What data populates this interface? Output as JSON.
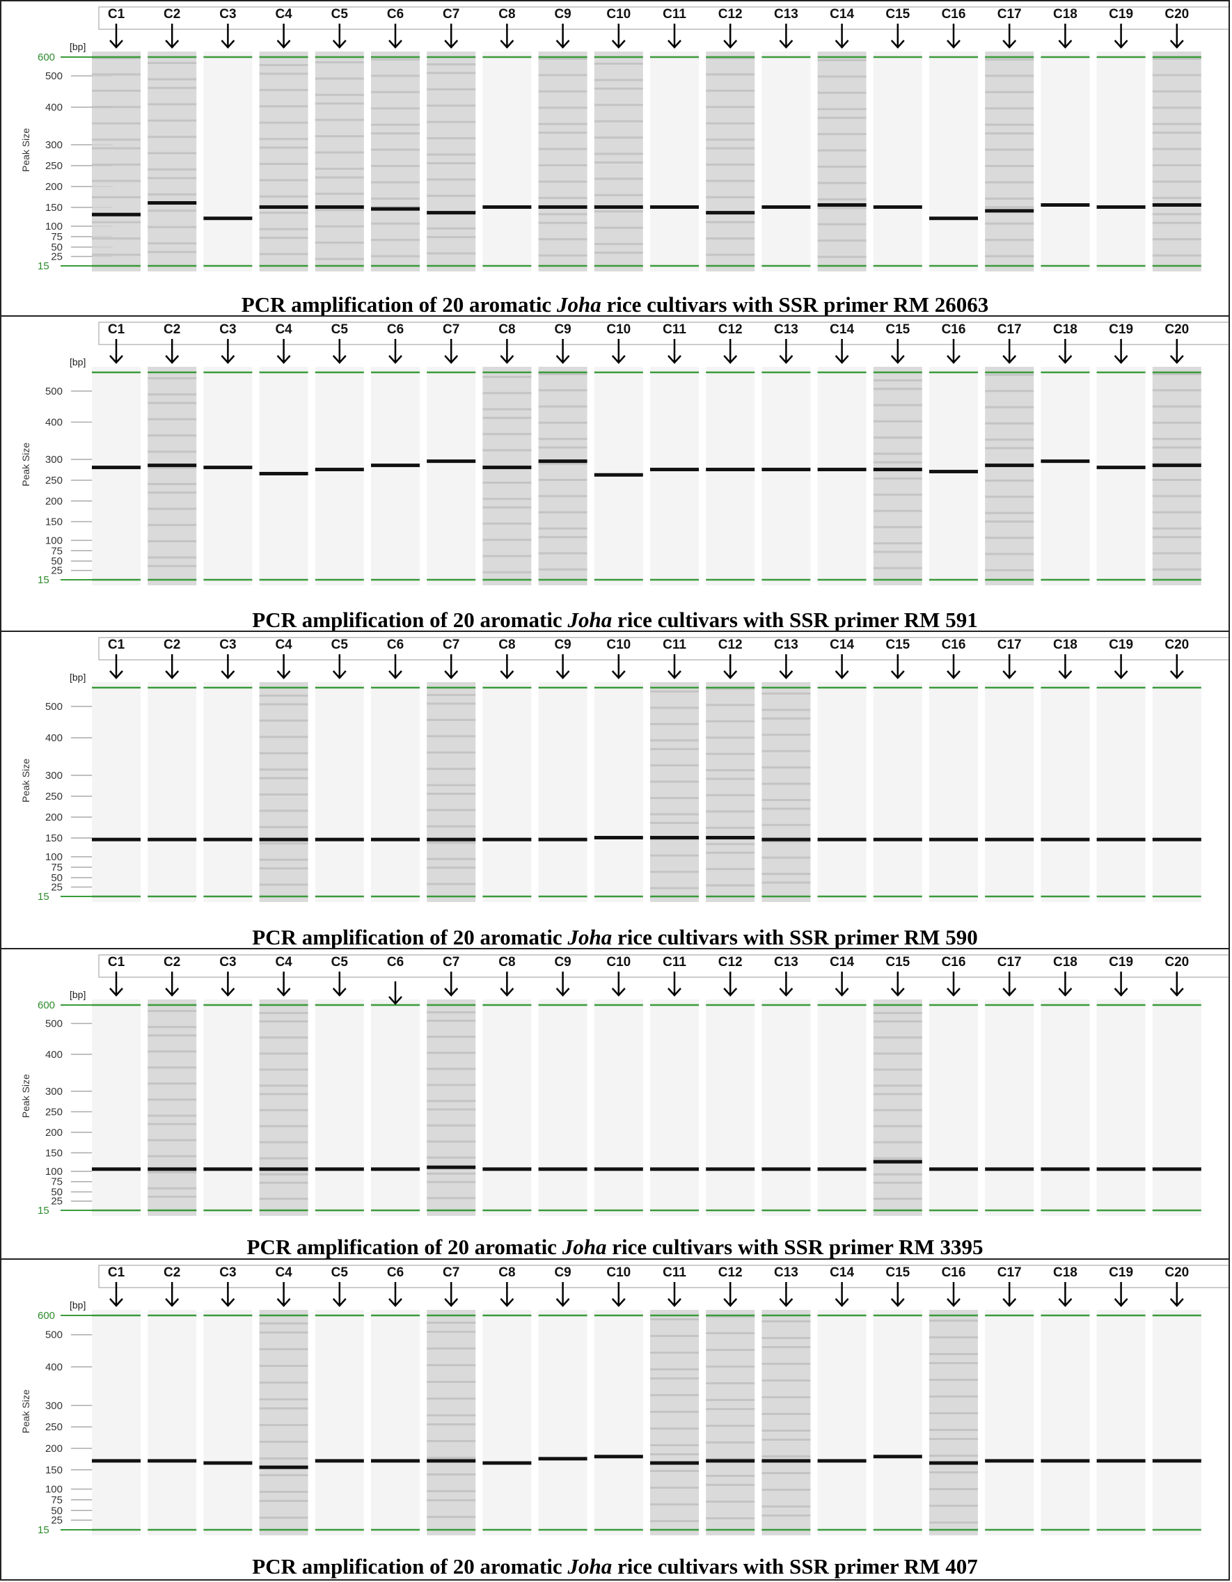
{
  "y_axis_label": "Peak Size",
  "unit_label": "[bp]",
  "lanes": [
    "C1",
    "C2",
    "C3",
    "C4",
    "C5",
    "C6",
    "C7",
    "C8",
    "C9",
    "C10",
    "C11",
    "C12",
    "C13",
    "C14",
    "C15",
    "C16",
    "C17",
    "C18",
    "C19",
    "C20"
  ],
  "colors": {
    "marker": "#3a9a3a",
    "band": "#111111",
    "smear": "#c8c8c8"
  },
  "panels": [
    {
      "caption_pre": "PCR amplification of 20 aromatic ",
      "caption_italic": "Joha",
      "caption_post": " rice cultivars with SSR primer RM 26063",
      "tick_labels": [
        "600",
        "500",
        "400",
        "300",
        "250",
        "200",
        "150",
        "100",
        "75",
        "50",
        "25",
        "15"
      ],
      "band_sizes_bp": [
        130,
        160,
        120,
        150,
        150,
        145,
        135,
        150,
        150,
        150,
        150,
        135,
        150,
        155,
        150,
        120,
        140,
        155,
        150,
        155
      ],
      "smear_lanes": [
        "C1",
        "C2",
        "C4",
        "C5",
        "C6",
        "C7",
        "C9",
        "C10",
        "C12",
        "C14",
        "C17",
        "C20"
      ],
      "c6_arrow_low": false
    },
    {
      "caption_pre": "PCR amplification of 20 aromatic ",
      "caption_italic": "Joha",
      "caption_post": " rice cultivars with SSR primer RM 591",
      "tick_labels": [
        "500",
        "400",
        "300",
        "250",
        "200",
        "150",
        "100",
        "75",
        "50",
        "25",
        "15"
      ],
      "band_sizes_bp": [
        280,
        285,
        280,
        265,
        275,
        285,
        295,
        280,
        295,
        262,
        275,
        275,
        275,
        275,
        275,
        270,
        285,
        295,
        280,
        285
      ],
      "smear_lanes": [
        "C2",
        "C8",
        "C9",
        "C15",
        "C17",
        "C20"
      ],
      "c6_arrow_low": false
    },
    {
      "caption_pre": "PCR amplification of 20 aromatic ",
      "caption_italic": "Joha",
      "caption_post": " rice cultivars with SSR primer RM 590",
      "tick_labels": [
        "500",
        "400",
        "300",
        "250",
        "200",
        "150",
        "100",
        "75",
        "50",
        "25",
        "15"
      ],
      "band_sizes_bp": [
        145,
        145,
        145,
        145,
        145,
        145,
        145,
        145,
        145,
        150,
        150,
        150,
        145,
        145,
        145,
        145,
        145,
        145,
        145,
        145
      ],
      "smear_lanes": [
        "C4",
        "C7",
        "C11",
        "C12",
        "C13"
      ],
      "c6_arrow_low": false
    },
    {
      "caption_pre": "PCR amplification of 20 aromatic ",
      "caption_italic": "Joha",
      "caption_post": " rice cultivars with SSR primer RM 3395",
      "tick_labels": [
        "600",
        "500",
        "400",
        "300",
        "250",
        "200",
        "150",
        "100",
        "75",
        "50",
        "25",
        "15"
      ],
      "band_sizes_bp": [
        105,
        105,
        105,
        105,
        105,
        105,
        110,
        105,
        105,
        105,
        105,
        105,
        105,
        105,
        125,
        105,
        105,
        105,
        105,
        105
      ],
      "smear_lanes": [
        "C2",
        "C4",
        "C7",
        "C15"
      ],
      "c6_arrow_low": true
    },
    {
      "caption_pre": "PCR amplification of 20 aromatic ",
      "caption_italic": "Joha",
      "caption_post": " rice cultivars with SSR primer RM 407",
      "tick_labels": [
        "600",
        "500",
        "400",
        "300",
        "250",
        "200",
        "150",
        "100",
        "75",
        "50",
        "25",
        "15"
      ],
      "band_sizes_bp": [
        170,
        170,
        165,
        155,
        170,
        170,
        170,
        165,
        175,
        180,
        165,
        170,
        170,
        170,
        180,
        165,
        170,
        170,
        170,
        170
      ],
      "smear_lanes": [
        "C4",
        "C7",
        "C11",
        "C12",
        "C13",
        "C16"
      ],
      "c6_arrow_low": false
    }
  ]
}
